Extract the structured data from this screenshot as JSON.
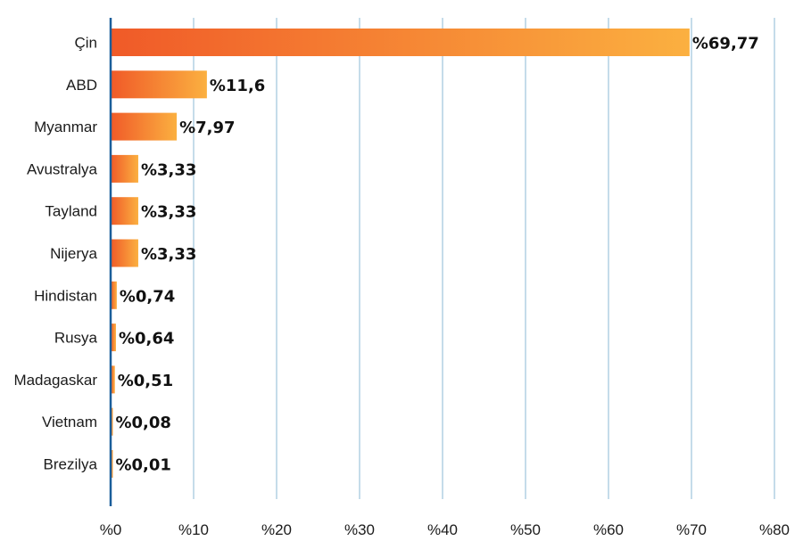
{
  "chart_data": {
    "type": "bar",
    "orientation": "horizontal",
    "categories": [
      "Çin",
      "ABD",
      "Myanmar",
      "Avustralya",
      "Tayland",
      "Nijerya",
      "Hindistan",
      "Rusya",
      "Madagaskar",
      "Vietnam",
      "Brezilya"
    ],
    "values": [
      69.77,
      11.6,
      7.97,
      3.33,
      3.33,
      3.33,
      0.74,
      0.64,
      0.51,
      0.08,
      0.01
    ],
    "value_labels": [
      "%69,77",
      "%11,6",
      "%7,97",
      "%3,33",
      "%3,33",
      "%3,33",
      "%0,74",
      "%0,64",
      "%0,51",
      "%0,08",
      "%0,01"
    ],
    "xticks": [
      0,
      10,
      20,
      30,
      40,
      50,
      60,
      70,
      80
    ],
    "xtick_labels": [
      "%0",
      "%10",
      "%20",
      "%30",
      "%40",
      "%50",
      "%60",
      "%70",
      "%80"
    ],
    "xlim": [
      0,
      80
    ],
    "title": "",
    "xlabel": "",
    "ylabel": "",
    "grid": "vertical",
    "colors": {
      "bar_start": "#f05a28",
      "bar_end": "#fbb040",
      "grid": "#c5dcea",
      "axis": "#1a5e9a"
    }
  }
}
